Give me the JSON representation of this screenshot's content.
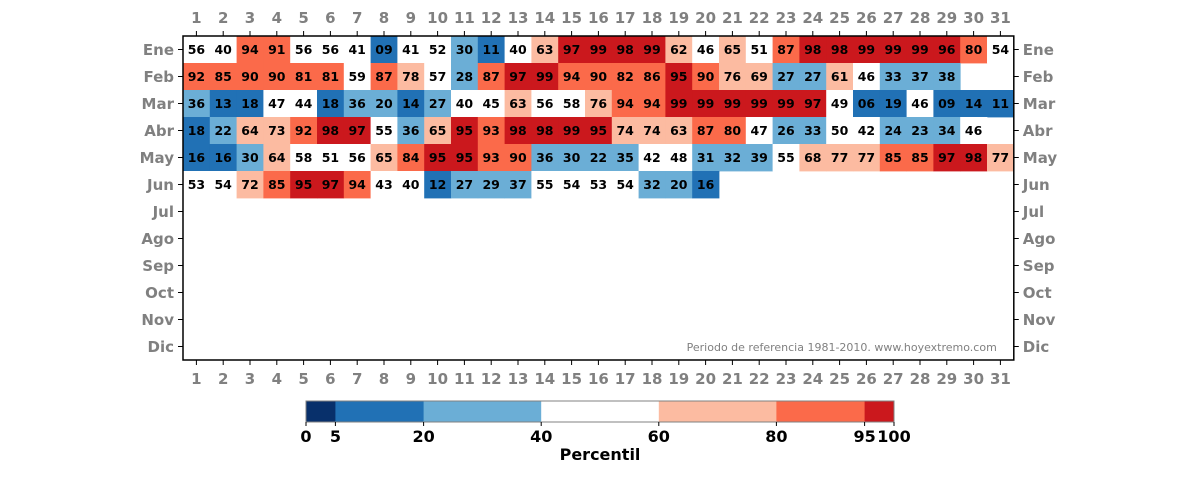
{
  "chart_data": {
    "type": "heatmap",
    "x_categories": [
      "1",
      "2",
      "3",
      "4",
      "5",
      "6",
      "7",
      "8",
      "9",
      "10",
      "11",
      "12",
      "13",
      "14",
      "15",
      "16",
      "17",
      "18",
      "19",
      "20",
      "21",
      "22",
      "23",
      "24",
      "25",
      "26",
      "27",
      "28",
      "29",
      "30",
      "31"
    ],
    "y_categories": [
      "Ene",
      "Feb",
      "Mar",
      "Abr",
      "May",
      "Jun",
      "Jul",
      "Ago",
      "Sep",
      "Oct",
      "Nov",
      "Dic"
    ],
    "values": [
      [
        "56",
        "40",
        "94",
        "91",
        "56",
        "56",
        "41",
        "09",
        "41",
        "52",
        "30",
        "11",
        "40",
        "63",
        "97",
        "99",
        "98",
        "99",
        "62",
        "46",
        "65",
        "51",
        "87",
        "98",
        "98",
        "99",
        "99",
        "99",
        "96",
        "80",
        "54"
      ],
      [
        "92",
        "85",
        "90",
        "90",
        "81",
        "81",
        "59",
        "87",
        "78",
        "57",
        "28",
        "87",
        "97",
        "99",
        "94",
        "90",
        "82",
        "86",
        "95",
        "90",
        "76",
        "69",
        "27",
        "27",
        "61",
        "46",
        "33",
        "37",
        "38",
        null,
        null
      ],
      [
        "36",
        "13",
        "18",
        "47",
        "44",
        "18",
        "36",
        "20",
        "14",
        "27",
        "40",
        "45",
        "63",
        "56",
        "58",
        "76",
        "94",
        "94",
        "99",
        "99",
        "99",
        "99",
        "99",
        "97",
        "49",
        "06",
        "19",
        "46",
        "09",
        "14",
        "11"
      ],
      [
        "18",
        "22",
        "64",
        "73",
        "92",
        "98",
        "97",
        "55",
        "36",
        "65",
        "95",
        "93",
        "98",
        "98",
        "99",
        "95",
        "74",
        "74",
        "63",
        "87",
        "80",
        "47",
        "26",
        "33",
        "50",
        "42",
        "24",
        "23",
        "34",
        "46",
        null
      ],
      [
        "16",
        "16",
        "30",
        "64",
        "58",
        "51",
        "56",
        "65",
        "84",
        "95",
        "95",
        "93",
        "90",
        "36",
        "30",
        "22",
        "35",
        "42",
        "48",
        "31",
        "32",
        "39",
        "55",
        "68",
        "77",
        "77",
        "85",
        "85",
        "97",
        "98",
        "77"
      ],
      [
        "53",
        "54",
        "72",
        "85",
        "95",
        "97",
        "94",
        "43",
        "40",
        "12",
        "27",
        "29",
        "37",
        "55",
        "54",
        "53",
        "54",
        "32",
        "20",
        "16",
        null,
        null,
        null,
        null,
        null,
        null,
        null,
        null,
        null,
        null,
        null
      ],
      [
        null,
        null,
        null,
        null,
        null,
        null,
        null,
        null,
        null,
        null,
        null,
        null,
        null,
        null,
        null,
        null,
        null,
        null,
        null,
        null,
        null,
        null,
        null,
        null,
        null,
        null,
        null,
        null,
        null,
        null,
        null
      ],
      [
        null,
        null,
        null,
        null,
        null,
        null,
        null,
        null,
        null,
        null,
        null,
        null,
        null,
        null,
        null,
        null,
        null,
        null,
        null,
        null,
        null,
        null,
        null,
        null,
        null,
        null,
        null,
        null,
        null,
        null,
        null
      ],
      [
        null,
        null,
        null,
        null,
        null,
        null,
        null,
        null,
        null,
        null,
        null,
        null,
        null,
        null,
        null,
        null,
        null,
        null,
        null,
        null,
        null,
        null,
        null,
        null,
        null,
        null,
        null,
        null,
        null,
        null,
        null
      ],
      [
        null,
        null,
        null,
        null,
        null,
        null,
        null,
        null,
        null,
        null,
        null,
        null,
        null,
        null,
        null,
        null,
        null,
        null,
        null,
        null,
        null,
        null,
        null,
        null,
        null,
        null,
        null,
        null,
        null,
        null,
        null
      ],
      [
        null,
        null,
        null,
        null,
        null,
        null,
        null,
        null,
        null,
        null,
        null,
        null,
        null,
        null,
        null,
        null,
        null,
        null,
        null,
        null,
        null,
        null,
        null,
        null,
        null,
        null,
        null,
        null,
        null,
        null,
        null
      ],
      [
        null,
        null,
        null,
        null,
        null,
        null,
        null,
        null,
        null,
        null,
        null,
        null,
        null,
        null,
        null,
        null,
        null,
        null,
        null,
        null,
        null,
        null,
        null,
        null,
        null,
        null,
        null,
        null,
        null,
        null,
        null
      ]
    ],
    "annotation": "Periodo de referencia 1981-2010. www.hoyextremo.com",
    "colorbar": {
      "label": "Percentil",
      "ticks": [
        "0",
        "5",
        "20",
        "40",
        "60",
        "80",
        "95",
        "100"
      ],
      "boundaries": [
        0,
        5,
        20,
        40,
        60,
        80,
        95,
        100
      ],
      "colors": [
        "#08306b",
        "#2171b5",
        "#6baed6",
        "#ffffff",
        "#fcbba1",
        "#fb6a4a",
        "#cb181d"
      ]
    }
  }
}
